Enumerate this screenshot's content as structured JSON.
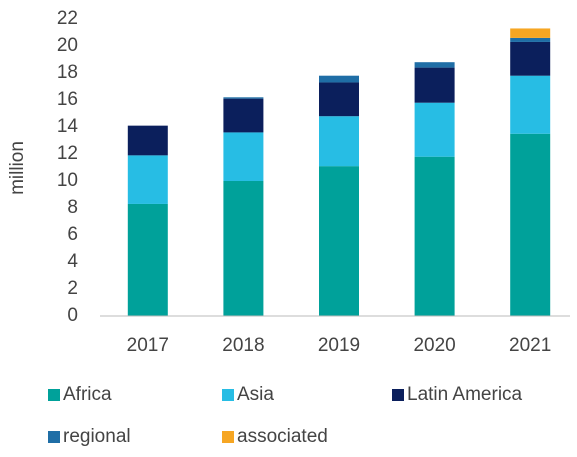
{
  "chart_data": {
    "type": "stacked_bar",
    "y_label": "million",
    "categories": [
      "2017",
      "2018",
      "2019",
      "2020",
      "2021"
    ],
    "series": [
      {
        "name": "Africa",
        "color": "#00a19a",
        "values": [
          8.3,
          10.0,
          11.1,
          11.8,
          13.5
        ]
      },
      {
        "name": "Asia",
        "color": "#27bde4",
        "values": [
          3.6,
          3.6,
          3.7,
          4.0,
          4.3
        ]
      },
      {
        "name": "Latin America",
        "color": "#0b1f5c",
        "values": [
          2.2,
          2.5,
          2.5,
          2.6,
          2.5
        ]
      },
      {
        "name": "regional",
        "color": "#1f6ea6",
        "values": [
          0,
          0.1,
          0.5,
          0.4,
          0.3
        ]
      },
      {
        "name": "associated",
        "color": "#f6a623",
        "values": [
          0,
          0,
          0,
          0,
          0.7
        ]
      }
    ],
    "ylim": [
      0,
      22
    ],
    "yticks": [
      0,
      2,
      4,
      6,
      8,
      10,
      12,
      14,
      16,
      18,
      20,
      22
    ],
    "grid": false
  }
}
